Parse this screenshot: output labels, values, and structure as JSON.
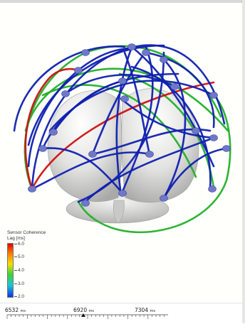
{
  "legend": {
    "title": "Sensor Coherence",
    "subtitle": "Lag [ms]",
    "ticks": [
      "6.0",
      "5.0",
      "4.0",
      "3.0",
      "2.0"
    ]
  },
  "timeline": {
    "start": {
      "value": "6532",
      "unit": "ms"
    },
    "mid": {
      "value": "6920",
      "unit": "ms"
    },
    "end": {
      "value": "7304",
      "unit": "ms"
    }
  },
  "colors": {
    "red_connection": "#cc1111",
    "green_connection": "#22b02a",
    "blue_connection": "#1020b0",
    "sensor": "#6f78c8",
    "brain": "#e3e3e1"
  }
}
